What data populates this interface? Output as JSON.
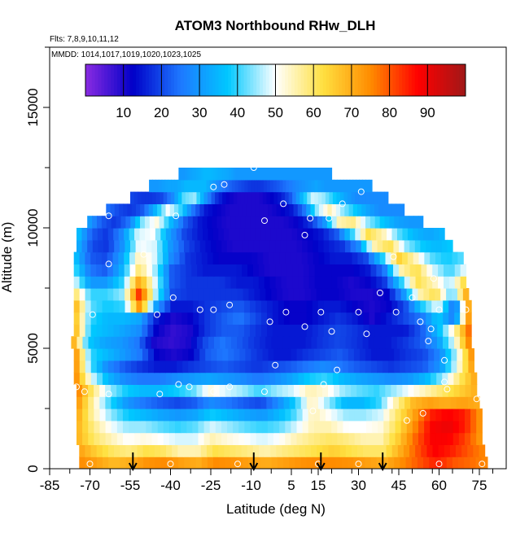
{
  "chart_data": {
    "type": "heatmap",
    "title": "ATOM3 Northbound RHw_DLH",
    "annotations": {
      "flights": "Flts: 7,8,9,10,11,12",
      "dates": "MMDD: 1014,1017,1019,1020,1023,1025"
    },
    "xlabel": "Latitude (deg N)",
    "ylabel": "Altitude (m)",
    "xlim": [
      -85,
      85
    ],
    "ylim": [
      0,
      17500
    ],
    "xticks": [
      -85,
      -70,
      -55,
      -40,
      -25,
      -10,
      5,
      15,
      30,
      45,
      60,
      75
    ],
    "yticks": [
      0,
      5000,
      10000,
      15000
    ],
    "colorbar": {
      "range": [
        0,
        100
      ],
      "ticks": [
        10,
        20,
        30,
        40,
        50,
        60,
        70,
        80,
        90
      ],
      "colors": [
        "#8a2be2",
        "#0000c8",
        "#1e78ff",
        "#00c8ff",
        "#ffffff",
        "#ffe040",
        "#ff8c00",
        "#ff0000",
        "#a01818"
      ]
    },
    "layers": [
      {
        "alt": 250,
        "lat_range": [
          -74,
          78
        ],
        "values": [
          75,
          72,
          68,
          70,
          74,
          75,
          72,
          70,
          75,
          74,
          72,
          70,
          72,
          74,
          75,
          75,
          74,
          72,
          70,
          75,
          80,
          85,
          80,
          78,
          75
        ]
      },
      {
        "alt": 750,
        "lat_range": [
          -74,
          77
        ],
        "values": [
          72,
          65,
          60,
          58,
          62,
          60,
          55,
          55,
          62,
          60,
          58,
          55,
          58,
          60,
          62,
          65,
          62,
          60,
          60,
          70,
          80,
          88,
          85,
          80,
          75
        ]
      },
      {
        "alt": 1250,
        "lat_range": [
          -75,
          76
        ],
        "values": [
          70,
          60,
          55,
          50,
          52,
          50,
          48,
          48,
          55,
          52,
          50,
          48,
          50,
          55,
          58,
          60,
          58,
          55,
          55,
          65,
          78,
          88,
          88,
          82,
          72
        ]
      },
      {
        "alt": 1750,
        "lat_range": [
          -75,
          76
        ],
        "values": [
          70,
          58,
          50,
          45,
          45,
          42,
          40,
          42,
          48,
          45,
          42,
          40,
          42,
          48,
          55,
          55,
          50,
          50,
          52,
          62,
          75,
          88,
          90,
          85,
          72
        ]
      },
      {
        "alt": 2250,
        "lat_range": [
          -75,
          76
        ],
        "values": [
          72,
          55,
          45,
          38,
          35,
          32,
          30,
          32,
          38,
          35,
          32,
          30,
          35,
          42,
          55,
          50,
          45,
          45,
          48,
          60,
          72,
          85,
          88,
          85,
          72
        ]
      },
      {
        "alt": 2750,
        "lat_range": [
          -75,
          75
        ],
        "values": [
          75,
          55,
          40,
          30,
          25,
          22,
          20,
          22,
          28,
          25,
          22,
          20,
          28,
          38,
          55,
          45,
          35,
          35,
          40,
          55,
          68,
          72,
          70,
          72,
          70
        ]
      },
      {
        "alt": 3250,
        "lat_range": [
          -75,
          74
        ],
        "values": [
          78,
          58,
          45,
          38,
          35,
          35,
          38,
          42,
          52,
          48,
          45,
          40,
          45,
          48,
          55,
          52,
          45,
          42,
          40,
          45,
          50,
          55,
          60,
          65,
          70
        ]
      },
      {
        "alt": 3750,
        "lat_range": [
          -76,
          74
        ],
        "values": [
          78,
          50,
          35,
          28,
          25,
          25,
          28,
          30,
          32,
          30,
          28,
          25,
          28,
          32,
          38,
          40,
          35,
          32,
          30,
          28,
          30,
          35,
          45,
          60,
          72
        ]
      },
      {
        "alt": 4250,
        "lat_range": [
          -76,
          73
        ],
        "values": [
          78,
          42,
          28,
          22,
          18,
          15,
          15,
          18,
          20,
          22,
          20,
          18,
          20,
          22,
          25,
          28,
          25,
          22,
          20,
          18,
          20,
          22,
          30,
          50,
          75
        ]
      },
      {
        "alt": 4750,
        "lat_range": [
          -76,
          73
        ],
        "values": [
          78,
          40,
          35,
          30,
          25,
          12,
          10,
          12,
          22,
          25,
          22,
          18,
          15,
          15,
          18,
          20,
          22,
          18,
          15,
          15,
          18,
          20,
          28,
          48,
          78
        ]
      },
      {
        "alt": 5250,
        "lat_range": [
          -77,
          72
        ],
        "values": [
          75,
          38,
          32,
          30,
          25,
          10,
          8,
          10,
          20,
          25,
          22,
          18,
          15,
          15,
          15,
          18,
          20,
          18,
          15,
          15,
          18,
          22,
          30,
          50,
          80
        ]
      },
      {
        "alt": 5750,
        "lat_range": [
          -76,
          72
        ],
        "values": [
          72,
          38,
          35,
          32,
          28,
          12,
          8,
          10,
          18,
          22,
          22,
          18,
          15,
          15,
          15,
          18,
          20,
          18,
          15,
          15,
          15,
          22,
          35,
          55,
          82
        ]
      },
      {
        "alt": 6250,
        "lat_range": [
          -76,
          72
        ],
        "values": [
          70,
          40,
          35,
          35,
          32,
          15,
          10,
          12,
          18,
          22,
          25,
          20,
          15,
          12,
          12,
          15,
          18,
          15,
          10,
          15,
          20,
          25,
          38,
          25,
          82
        ]
      },
      {
        "alt": 6750,
        "lat_range": [
          -76,
          72
        ],
        "values": [
          72,
          42,
          38,
          40,
          75,
          30,
          15,
          15,
          18,
          20,
          22,
          18,
          15,
          12,
          12,
          15,
          15,
          12,
          10,
          12,
          20,
          38,
          50,
          22,
          80
        ]
      },
      {
        "alt": 7250,
        "lat_range": [
          -76,
          71
        ],
        "values": [
          62,
          40,
          40,
          45,
          85,
          45,
          20,
          18,
          18,
          18,
          18,
          15,
          12,
          10,
          10,
          12,
          12,
          10,
          10,
          12,
          28,
          55,
          62,
          40,
          75
        ]
      },
      {
        "alt": 7750,
        "lat_range": [
          -76,
          70
        ],
        "values": [
          50,
          30,
          30,
          40,
          72,
          48,
          22,
          18,
          18,
          18,
          15,
          15,
          12,
          10,
          10,
          12,
          12,
          10,
          12,
          18,
          38,
          62,
          55,
          45,
          65
        ]
      },
      {
        "alt": 8250,
        "lat_range": [
          -76,
          70
        ],
        "values": [
          42,
          25,
          22,
          35,
          60,
          45,
          22,
          18,
          15,
          15,
          15,
          12,
          10,
          10,
          10,
          12,
          12,
          12,
          15,
          25,
          55,
          62,
          48,
          40,
          50
        ]
      },
      {
        "alt": 8750,
        "lat_range": [
          -76,
          69
        ],
        "values": [
          38,
          22,
          20,
          32,
          55,
          48,
          28,
          18,
          15,
          12,
          12,
          12,
          10,
          10,
          10,
          12,
          15,
          15,
          20,
          38,
          65,
          55,
          42,
          38,
          42
        ]
      },
      {
        "alt": 9250,
        "lat_range": [
          -75,
          65
        ],
        "values": [
          35,
          20,
          18,
          30,
          50,
          48,
          30,
          20,
          15,
          12,
          10,
          10,
          10,
          10,
          10,
          12,
          15,
          18,
          28,
          55,
          62,
          45,
          38,
          35,
          38
        ]
      },
      {
        "alt": 9750,
        "lat_range": [
          -75,
          62
        ],
        "values": [
          38,
          22,
          18,
          28,
          48,
          50,
          32,
          20,
          15,
          12,
          10,
          10,
          10,
          10,
          10,
          12,
          15,
          22,
          40,
          62,
          55,
          42,
          35,
          32,
          35
        ]
      },
      {
        "alt": 10250,
        "lat_range": [
          -71,
          54
        ],
        "values": [
          32,
          22,
          18,
          25,
          45,
          52,
          35,
          22,
          15,
          12,
          10,
          10,
          10,
          10,
          10,
          12,
          18,
          30,
          55,
          58,
          45,
          38,
          32,
          30,
          30
        ]
      },
      {
        "alt": 10750,
        "lat_range": [
          -64,
          47
        ],
        "values": [
          25,
          20,
          18,
          22,
          35,
          50,
          40,
          25,
          15,
          12,
          10,
          10,
          10,
          10,
          12,
          15,
          25,
          45,
          55,
          45,
          38,
          32,
          28,
          28,
          28
        ]
      },
      {
        "alt": 11250,
        "lat_range": [
          -55,
          41
        ],
        "values": [
          20,
          18,
          18,
          20,
          28,
          42,
          45,
          30,
          18,
          12,
          10,
          10,
          10,
          12,
          15,
          22,
          35,
          48,
          45,
          38,
          32,
          28,
          28,
          28,
          28
        ]
      },
      {
        "alt": 11750,
        "lat_range": [
          -48,
          35
        ],
        "values": [
          30,
          30,
          32,
          32,
          35,
          35,
          35,
          30,
          25,
          22,
          20,
          18,
          18,
          20,
          22,
          25,
          28,
          30,
          32,
          30,
          30,
          30,
          30,
          30,
          30
        ]
      },
      {
        "alt": 12250,
        "lat_range": [
          -37,
          20
        ],
        "values": [
          30,
          30,
          32,
          33,
          35,
          35,
          34,
          33,
          32,
          30,
          30,
          30,
          30,
          30,
          30,
          30,
          30,
          30,
          30,
          30,
          30,
          30,
          30,
          30,
          30
        ]
      }
    ],
    "observation_points": [
      [
        -79,
        5500
      ],
      [
        -75,
        3400
      ],
      [
        -72,
        3200
      ],
      [
        -69,
        6400
      ],
      [
        -63,
        10500
      ],
      [
        -63,
        8500
      ],
      [
        -63,
        3100
      ],
      [
        -50,
        8900
      ],
      [
        -45,
        6400
      ],
      [
        -44,
        3100
      ],
      [
        -39,
        7100
      ],
      [
        -38,
        10500
      ],
      [
        -37,
        3500
      ],
      [
        -33,
        3400
      ],
      [
        -29,
        6600
      ],
      [
        -24,
        11700
      ],
      [
        -24,
        6600
      ],
      [
        -24,
        3200
      ],
      [
        -20,
        11800
      ],
      [
        -18,
        6800
      ],
      [
        -18,
        3400
      ],
      [
        -9,
        12500
      ],
      [
        -5,
        10300
      ],
      [
        -5,
        3200
      ],
      [
        -3,
        6100
      ],
      [
        -1,
        4300
      ],
      [
        2,
        11000
      ],
      [
        3,
        6500
      ],
      [
        10,
        9700
      ],
      [
        10,
        5900
      ],
      [
        12,
        10400
      ],
      [
        13,
        2400
      ],
      [
        16,
        6500
      ],
      [
        17,
        3500
      ],
      [
        19,
        10400
      ],
      [
        20,
        5700
      ],
      [
        22,
        4100
      ],
      [
        24,
        11000
      ],
      [
        30,
        6500
      ],
      [
        31,
        11500
      ],
      [
        33,
        5600
      ],
      [
        38,
        7300
      ],
      [
        43,
        8800
      ],
      [
        44,
        6500
      ],
      [
        48,
        2000
      ],
      [
        50,
        7100
      ],
      [
        53,
        6100
      ],
      [
        54,
        2300
      ],
      [
        56,
        5300
      ],
      [
        57,
        5800
      ],
      [
        58,
        7900
      ],
      [
        60,
        6600
      ],
      [
        62,
        3600
      ],
      [
        62,
        4500
      ],
      [
        63,
        3300
      ],
      [
        70,
        6600
      ],
      [
        72,
        8400
      ],
      [
        74,
        2900
      ],
      [
        -70,
        200
      ],
      [
        -40,
        200
      ],
      [
        -15,
        200
      ],
      [
        15,
        200
      ],
      [
        30,
        200
      ],
      [
        60,
        200
      ],
      [
        76,
        200
      ]
    ],
    "arrows": [
      -54,
      -9,
      16,
      39
    ]
  }
}
